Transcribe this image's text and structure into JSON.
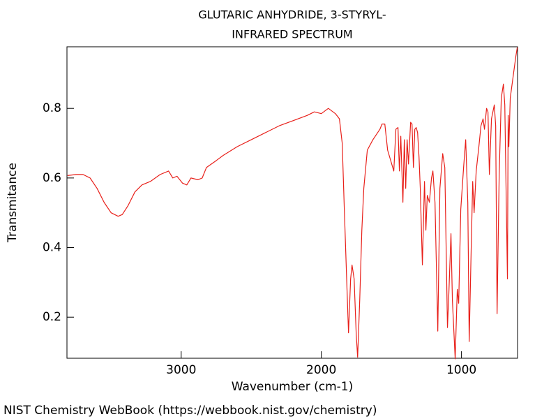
{
  "chart_data": {
    "type": "line",
    "title": "GLUTARIC ANHYDRIDE, 3-STYRYL-",
    "subtitle": "INFRARED SPECTRUM",
    "x_label": "Wavenumber (cm-1)",
    "y_label": "Transmitance",
    "footer": "NIST Chemistry WebBook (https://webbook.nist.gov/chemistry)",
    "xlim": [
      3815,
      600
    ],
    "ylim": [
      0.082,
      0.977
    ],
    "xticks": [
      3000,
      2000,
      1000
    ],
    "yticks": [
      0.2,
      0.4,
      0.6,
      0.8
    ],
    "series": [
      {
        "color": "#e8201a",
        "x": [
          3811,
          3750,
          3700,
          3650,
          3600,
          3550,
          3500,
          3450,
          3420,
          3380,
          3330,
          3280,
          3220,
          3150,
          3090,
          3060,
          3030,
          2990,
          2960,
          2930,
          2880,
          2850,
          2820,
          2750,
          2700,
          2600,
          2500,
          2400,
          2300,
          2200,
          2100,
          2050,
          2000,
          1950,
          1900,
          1871,
          1851,
          1836,
          1816,
          1806,
          1791,
          1781,
          1766,
          1751,
          1741,
          1726,
          1711,
          1697,
          1672,
          1632,
          1582,
          1567,
          1547,
          1527,
          1483,
          1468,
          1453,
          1443,
          1433,
          1418,
          1408,
          1398,
          1388,
          1378,
          1363,
          1353,
          1343,
          1333,
          1323,
          1313,
          1303,
          1294,
          1279,
          1264,
          1254,
          1244,
          1229,
          1214,
          1204,
          1189,
          1169,
          1154,
          1134,
          1119,
          1100,
          1090,
          1075,
          1065,
          1045,
          1030,
          1020,
          1005,
          985,
          970,
          960,
          955,
          945,
          930,
          920,
          910,
          895,
          876,
          861,
          846,
          836,
          821,
          811,
          801,
          786,
          766,
          756,
          746,
          731,
          716,
          701,
          691,
          672,
          667,
          662,
          652,
          632,
          612,
          602
        ],
        "values": [
          0.607,
          0.61,
          0.61,
          0.6,
          0.57,
          0.53,
          0.5,
          0.49,
          0.495,
          0.52,
          0.56,
          0.58,
          0.59,
          0.61,
          0.62,
          0.6,
          0.605,
          0.585,
          0.58,
          0.6,
          0.595,
          0.6,
          0.63,
          0.65,
          0.665,
          0.69,
          0.71,
          0.73,
          0.75,
          0.765,
          0.78,
          0.79,
          0.785,
          0.8,
          0.785,
          0.77,
          0.7,
          0.51,
          0.27,
          0.155,
          0.31,
          0.35,
          0.31,
          0.15,
          0.085,
          0.25,
          0.45,
          0.57,
          0.68,
          0.71,
          0.74,
          0.755,
          0.755,
          0.68,
          0.62,
          0.74,
          0.745,
          0.62,
          0.72,
          0.53,
          0.71,
          0.57,
          0.71,
          0.64,
          0.76,
          0.755,
          0.63,
          0.74,
          0.745,
          0.73,
          0.66,
          0.57,
          0.35,
          0.59,
          0.45,
          0.55,
          0.53,
          0.6,
          0.62,
          0.53,
          0.16,
          0.57,
          0.67,
          0.63,
          0.17,
          0.27,
          0.44,
          0.25,
          0.08,
          0.28,
          0.24,
          0.51,
          0.63,
          0.71,
          0.59,
          0.53,
          0.13,
          0.41,
          0.59,
          0.5,
          0.62,
          0.69,
          0.75,
          0.77,
          0.74,
          0.8,
          0.79,
          0.61,
          0.77,
          0.81,
          0.75,
          0.21,
          0.61,
          0.83,
          0.87,
          0.81,
          0.31,
          0.78,
          0.69,
          0.83,
          0.89,
          0.95,
          0.975
        ]
      }
    ]
  }
}
